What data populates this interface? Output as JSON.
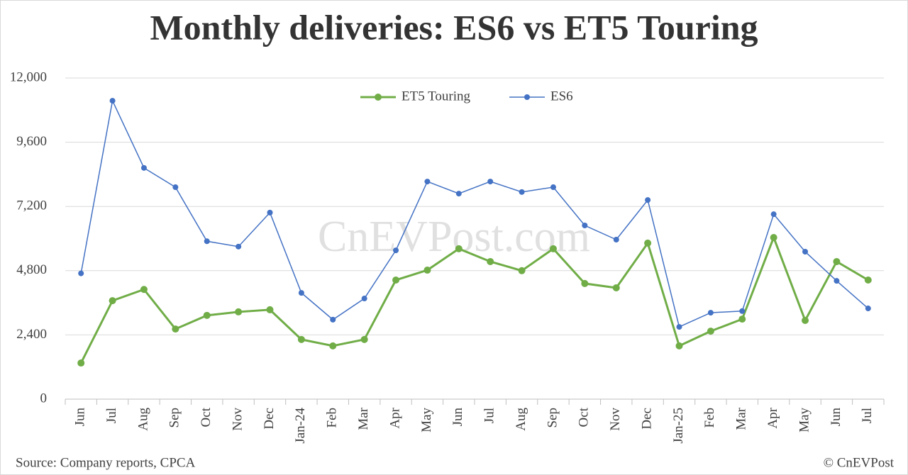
{
  "chart_data": {
    "type": "line",
    "title": "Monthly deliveries: ES6 vs ET5 Touring",
    "watermark": "CnEVPost.com",
    "source": "Source: Company reports, CPCA",
    "credit": "© CnEVPost",
    "categories": [
      "Jun",
      "Jul",
      "Aug",
      "Sep",
      "Oct",
      "Nov",
      "Dec",
      "Jan-24",
      "Feb",
      "Mar",
      "Apr",
      "May",
      "Jun",
      "Jul",
      "Aug",
      "Sep",
      "Oct",
      "Nov",
      "Dec",
      "Jan-25",
      "Feb",
      "Mar",
      "Apr",
      "May",
      "Jun",
      "Jul"
    ],
    "series": [
      {
        "name": "ET5 Touring",
        "color": "#70ad47",
        "values": [
          1350,
          3680,
          4100,
          2620,
          3130,
          3260,
          3340,
          2230,
          1990,
          2230,
          4450,
          4820,
          5620,
          5140,
          4800,
          5620,
          4320,
          4160,
          5830,
          1990,
          2540,
          2990,
          6040,
          2940,
          5140,
          4450
        ]
      },
      {
        "name": "ES6",
        "color": "#4472c4",
        "values": [
          4700,
          11150,
          8640,
          7920,
          5900,
          5700,
          6970,
          3970,
          2970,
          3760,
          5560,
          8130,
          7680,
          8130,
          7740,
          7920,
          6490,
          5960,
          7440,
          2700,
          3230,
          3290,
          6910,
          5510,
          4420,
          3390
        ]
      }
    ],
    "ylim": [
      0,
      12000
    ],
    "yticks": [
      0,
      {
        "value": 2400,
        "label": "2,400"
      },
      {
        "value": 4800,
        "label": "4,800"
      },
      {
        "value": 7200,
        "label": "7,200"
      },
      {
        "value": 9600,
        "label": "9,600"
      },
      {
        "value": 12000,
        "label": "12,000"
      }
    ],
    "grid": true,
    "legend": "top"
  }
}
